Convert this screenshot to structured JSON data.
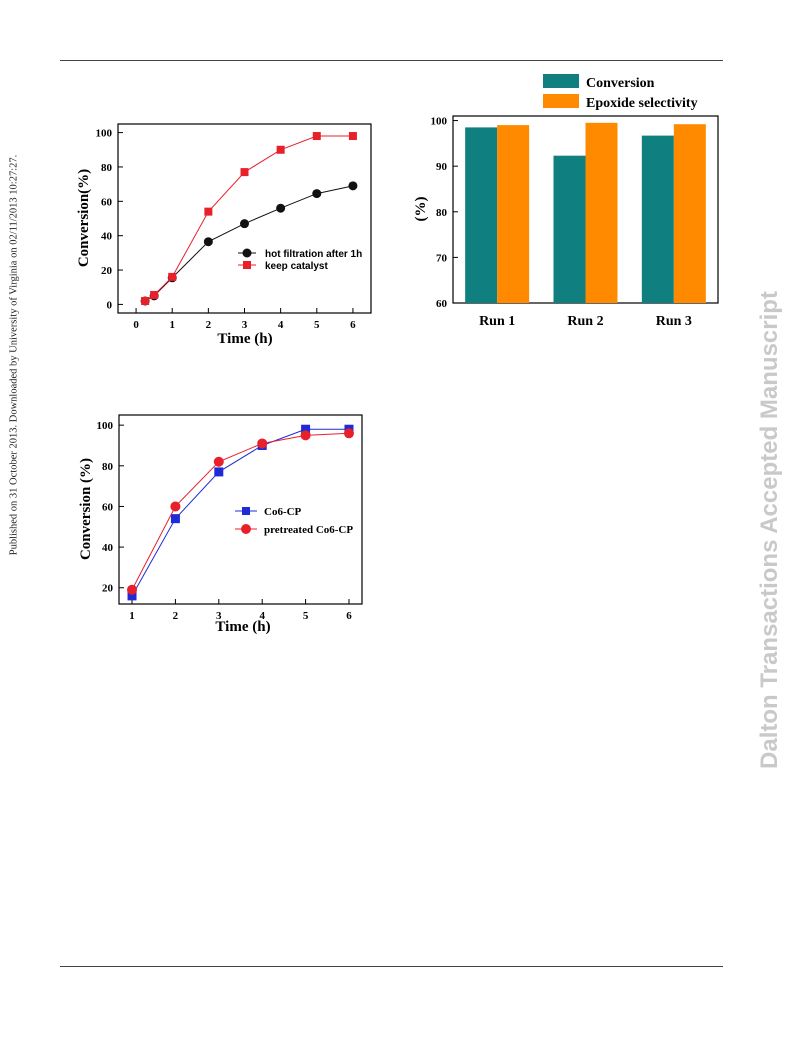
{
  "watermark": {
    "left_text": "Published on 31 October 2013. Downloaded by University of Virginia on 02/11/2013 10:27:27.",
    "right_text": "Dalton Transactions Accepted Manuscript"
  },
  "colors": {
    "black_series": "#111111",
    "red_series": "#e8202a",
    "blue_series": "#1f2bd6",
    "teal_bar": "#0f7f7f",
    "orange_bar": "#ff8a00"
  },
  "chart_data": [
    {
      "type": "line",
      "title": "",
      "xlabel": "Time (h)",
      "ylabel": "Conversion(%)",
      "xlim": [
        -0.5,
        6.5
      ],
      "ylim": [
        -5,
        105
      ],
      "xticks": [
        0,
        1,
        2,
        3,
        4,
        5,
        6
      ],
      "yticks": [
        0,
        20,
        40,
        60,
        80,
        100
      ],
      "legend_position": "center-right",
      "series": [
        {
          "name": "hot filtration after 1h",
          "marker": "circle",
          "x": [
            0.25,
            0.5,
            1,
            2,
            3,
            4,
            5,
            6
          ],
          "y": [
            2,
            5,
            15.5,
            36.5,
            47,
            56,
            64.5,
            69
          ]
        },
        {
          "name": "keep catalyst",
          "marker": "square",
          "x": [
            0.25,
            0.5,
            1,
            2,
            3,
            4,
            5,
            6
          ],
          "y": [
            2,
            5.5,
            16,
            54,
            77,
            90,
            98,
            98
          ]
        }
      ]
    },
    {
      "type": "bar",
      "title": "",
      "xlabel": "",
      "ylabel": "(%)",
      "ylim": [
        60,
        101
      ],
      "yticks": [
        60,
        70,
        80,
        90,
        100
      ],
      "categories": [
        "Run 1",
        "Run 2",
        "Run 3"
      ],
      "legend_position": "top",
      "series": [
        {
          "name": "Conversion",
          "values": [
            98.5,
            92.3,
            96.7
          ]
        },
        {
          "name": "Epoxide selectivity",
          "values": [
            99.0,
            99.5,
            99.2
          ]
        }
      ]
    },
    {
      "type": "line",
      "title": "",
      "xlabel": "Time (h)",
      "ylabel": "Conversion (%)",
      "xlim": [
        0.7,
        6.3
      ],
      "ylim": [
        12,
        105
      ],
      "xticks": [
        1,
        2,
        3,
        4,
        5,
        6
      ],
      "yticks": [
        20,
        40,
        60,
        80,
        100
      ],
      "legend_position": "center-right",
      "series": [
        {
          "name": "Co6-CP",
          "marker": "square",
          "x": [
            1,
            2,
            3,
            4,
            5,
            6
          ],
          "y": [
            16,
            54,
            77,
            90,
            98,
            98
          ]
        },
        {
          "name": "pretreated Co6-CP",
          "marker": "circle",
          "x": [
            1,
            2,
            3,
            4,
            5,
            6
          ],
          "y": [
            19,
            60,
            82,
            91,
            95,
            96
          ]
        }
      ]
    }
  ]
}
